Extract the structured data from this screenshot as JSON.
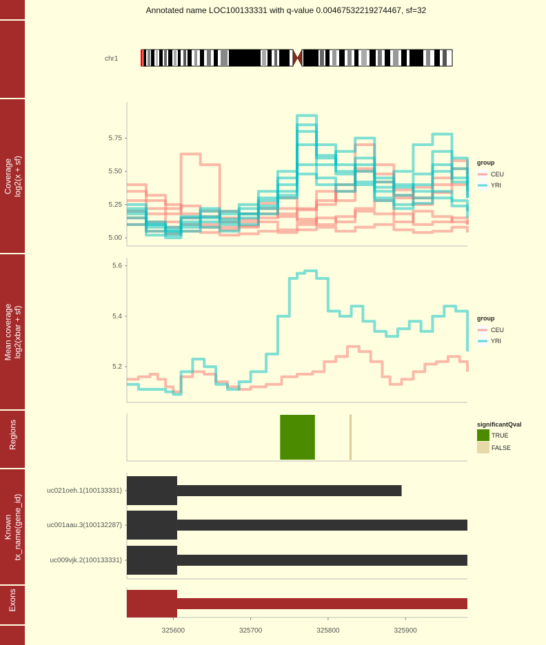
{
  "title": "Annotated name LOC100133331 with q-value 0.00467532219274467, sf=32",
  "colors": {
    "background": "#ffffe0",
    "strip": "#a52a2a",
    "CEU": "#f8766d",
    "YRI": "#00bfc4",
    "TRUE": "#4b8b00",
    "FALSE": "#e8d9a8",
    "transcript": "#333333",
    "exon": "#a52a2a"
  },
  "strips": [
    {
      "label": ""
    },
    {
      "label": ""
    },
    {
      "label": "Coverage\nlog2(x + sf)"
    },
    {
      "label": "Mean coverage\nlog2(xbar + sf)"
    },
    {
      "label": "Regions"
    },
    {
      "label": "Known\ntx_name(gene_id)"
    },
    {
      "label": "Exons"
    },
    {
      "label": ""
    }
  ],
  "ideogram": {
    "chromosome": "chr1"
  },
  "chart_data": [
    {
      "type": "line",
      "panel": "coverage",
      "ylabel": "Coverage log2(x + sf)",
      "x_range": [
        325540,
        325980
      ],
      "ylim": [
        4.98,
        5.98
      ],
      "y_ticks": [
        5.0,
        5.25,
        5.5,
        5.75
      ],
      "y_tick_labels": [
        "5.00",
        "5.25",
        "5.50",
        "5.75"
      ],
      "legend": {
        "title": "group",
        "entries": [
          "CEU",
          "YRI"
        ]
      },
      "series": [
        {
          "group": "CEU",
          "x": [
            325540,
            325565,
            325590,
            325610,
            325635,
            325660,
            325685,
            325710,
            325735,
            325760,
            325785,
            325810,
            325835,
            325860,
            325885,
            325910,
            325935,
            325960,
            325980
          ],
          "y": [
            5.35,
            5.28,
            5.22,
            5.63,
            5.55,
            5.12,
            5.09,
            5.15,
            5.18,
            5.21,
            5.25,
            5.35,
            5.7,
            5.55,
            5.3,
            5.38,
            5.45,
            5.52,
            5.48
          ]
        },
        {
          "group": "CEU",
          "x": [
            325540,
            325565,
            325590,
            325610,
            325635,
            325660,
            325685,
            325710,
            325735,
            325760,
            325785,
            325810,
            325835,
            325860,
            325885,
            325910,
            325935,
            325960,
            325980
          ],
          "y": [
            5.2,
            5.18,
            5.12,
            5.1,
            5.08,
            5.06,
            5.08,
            5.12,
            5.06,
            5.1,
            5.15,
            5.12,
            5.22,
            5.28,
            5.18,
            5.1,
            5.12,
            5.15,
            5.1
          ]
        },
        {
          "group": "CEU",
          "x": [
            325540,
            325565,
            325590,
            325610,
            325635,
            325660,
            325685,
            325710,
            325735,
            325760,
            325785,
            325810,
            325835,
            325860,
            325885,
            325910,
            325935,
            325960,
            325980
          ],
          "y": [
            5.1,
            5.05,
            5.03,
            5.05,
            5.04,
            5.02,
            5.03,
            5.05,
            5.04,
            5.06,
            5.08,
            5.05,
            5.08,
            5.1,
            5.06,
            5.04,
            5.05,
            5.08,
            5.04
          ]
        },
        {
          "group": "CEU",
          "x": [
            325540,
            325565,
            325590,
            325610,
            325635,
            325660,
            325685,
            325710,
            325735,
            325760,
            325785,
            325810,
            325835,
            325860,
            325885,
            325910,
            325935,
            325960,
            325980
          ],
          "y": [
            5.4,
            5.32,
            5.25,
            5.18,
            5.16,
            5.2,
            5.14,
            5.22,
            5.16,
            5.12,
            5.35,
            5.28,
            5.5,
            5.42,
            5.32,
            5.25,
            5.4,
            5.58,
            5.45
          ]
        },
        {
          "group": "CEU",
          "x": [
            325540,
            325565,
            325590,
            325610,
            325635,
            325660,
            325685,
            325710,
            325735,
            325760,
            325785,
            325810,
            325835,
            325860,
            325885,
            325910,
            325935,
            325960,
            325980
          ],
          "y": [
            5.15,
            5.12,
            5.08,
            5.15,
            5.1,
            5.08,
            5.12,
            5.18,
            5.22,
            5.14,
            5.1,
            5.16,
            5.2,
            5.18,
            5.12,
            5.2,
            5.16,
            5.12,
            5.1
          ]
        },
        {
          "group": "CEU",
          "x": [
            325540,
            325565,
            325590,
            325610,
            325635,
            325660,
            325685,
            325710,
            325735,
            325760,
            325785,
            325810,
            325835,
            325860,
            325885,
            325910,
            325935,
            325960,
            325980
          ],
          "y": [
            5.28,
            5.22,
            5.18,
            5.24,
            5.2,
            5.15,
            5.18,
            5.26,
            5.3,
            5.22,
            5.28,
            5.4,
            5.52,
            5.48,
            5.36,
            5.3,
            5.34,
            5.4,
            5.42
          ]
        },
        {
          "group": "YRI",
          "x": [
            325540,
            325565,
            325590,
            325610,
            325635,
            325660,
            325685,
            325710,
            325735,
            325760,
            325785,
            325810,
            325835,
            325860,
            325885,
            325910,
            325935,
            325960,
            325980
          ],
          "y": [
            5.25,
            5.1,
            5.05,
            5.15,
            5.2,
            5.12,
            5.18,
            5.3,
            5.45,
            5.92,
            5.7,
            5.55,
            5.4,
            5.35,
            5.5,
            5.7,
            5.78,
            5.6,
            5.4
          ]
        },
        {
          "group": "YRI",
          "x": [
            325540,
            325565,
            325590,
            325610,
            325635,
            325660,
            325685,
            325710,
            325735,
            325760,
            325785,
            325810,
            325835,
            325860,
            325885,
            325910,
            325935,
            325960,
            325980
          ],
          "y": [
            5.15,
            5.05,
            5.02,
            5.08,
            5.12,
            5.1,
            5.15,
            5.22,
            5.35,
            5.8,
            5.55,
            5.65,
            5.75,
            5.45,
            5.4,
            5.35,
            5.5,
            5.42,
            5.3
          ]
        },
        {
          "group": "YRI",
          "x": [
            325540,
            325565,
            325590,
            325610,
            325635,
            325660,
            325685,
            325710,
            325735,
            325760,
            325785,
            325810,
            325835,
            325860,
            325885,
            325910,
            325935,
            325960,
            325980
          ],
          "y": [
            5.1,
            5.02,
            5.0,
            5.05,
            5.08,
            5.05,
            5.1,
            5.18,
            5.3,
            5.55,
            5.45,
            5.4,
            5.5,
            5.3,
            5.25,
            5.3,
            5.35,
            5.28,
            5.2
          ]
        },
        {
          "group": "YRI",
          "x": [
            325540,
            325565,
            325590,
            325610,
            325635,
            325660,
            325685,
            325710,
            325735,
            325760,
            325785,
            325810,
            325835,
            325860,
            325885,
            325910,
            325935,
            325960,
            325980
          ],
          "y": [
            5.2,
            5.08,
            5.04,
            5.1,
            5.15,
            5.18,
            5.22,
            5.28,
            5.4,
            5.7,
            5.6,
            5.5,
            5.6,
            5.38,
            5.32,
            5.4,
            5.55,
            5.45,
            5.35
          ]
        },
        {
          "group": "YRI",
          "x": [
            325540,
            325565,
            325590,
            325610,
            325635,
            325660,
            325685,
            325710,
            325735,
            325760,
            325785,
            325810,
            325835,
            325860,
            325885,
            325910,
            325935,
            325960,
            325980
          ],
          "y": [
            5.18,
            5.1,
            5.06,
            5.12,
            5.16,
            5.14,
            5.18,
            5.24,
            5.32,
            5.48,
            5.4,
            5.35,
            5.42,
            5.28,
            5.22,
            5.26,
            5.3,
            5.24,
            5.15
          ]
        },
        {
          "group": "YRI",
          "x": [
            325540,
            325565,
            325590,
            325610,
            325635,
            325660,
            325685,
            325710,
            325735,
            325760,
            325785,
            325810,
            325835,
            325860,
            325885,
            325910,
            325935,
            325960,
            325980
          ],
          "y": [
            5.22,
            5.12,
            5.08,
            5.16,
            5.22,
            5.2,
            5.25,
            5.35,
            5.5,
            5.85,
            5.62,
            5.48,
            5.55,
            5.42,
            5.38,
            5.48,
            5.65,
            5.52,
            5.3
          ]
        }
      ]
    },
    {
      "type": "line",
      "panel": "mean coverage",
      "ylabel": "Mean coverage log2(xbar + sf)",
      "x_range": [
        325540,
        325980
      ],
      "ylim": [
        5.08,
        5.61
      ],
      "y_ticks": [
        5.2,
        5.4,
        5.6
      ],
      "y_tick_labels": [
        "5.2",
        "5.4",
        "5.6"
      ],
      "legend": {
        "title": "group",
        "entries": [
          "CEU",
          "YRI"
        ]
      },
      "series": [
        {
          "name": "CEU",
          "x": [
            325540,
            325555,
            325570,
            325580,
            325590,
            325600,
            325610,
            325625,
            325640,
            325655,
            325670,
            325685,
            325700,
            325720,
            325740,
            325760,
            325780,
            325795,
            325810,
            325825,
            325840,
            325855,
            325870,
            325880,
            325895,
            325910,
            325925,
            325940,
            325955,
            325970,
            325980
          ],
          "y": [
            5.15,
            5.16,
            5.17,
            5.15,
            5.12,
            5.1,
            5.16,
            5.18,
            5.17,
            5.14,
            5.12,
            5.11,
            5.12,
            5.13,
            5.16,
            5.17,
            5.18,
            5.22,
            5.24,
            5.28,
            5.26,
            5.22,
            5.16,
            5.13,
            5.15,
            5.18,
            5.21,
            5.22,
            5.24,
            5.22,
            5.18
          ]
        },
        {
          "name": "YRI",
          "x": [
            325540,
            325555,
            325570,
            325580,
            325590,
            325600,
            325610,
            325625,
            325640,
            325655,
            325670,
            325685,
            325700,
            325720,
            325735,
            325750,
            325760,
            325770,
            325785,
            325800,
            325815,
            325830,
            325845,
            325860,
            325875,
            325890,
            325905,
            325920,
            325935,
            325950,
            325965,
            325980
          ],
          "y": [
            5.13,
            5.11,
            5.11,
            5.11,
            5.1,
            5.09,
            5.18,
            5.23,
            5.2,
            5.13,
            5.11,
            5.14,
            5.18,
            5.25,
            5.4,
            5.55,
            5.57,
            5.58,
            5.55,
            5.42,
            5.4,
            5.44,
            5.38,
            5.34,
            5.32,
            5.35,
            5.38,
            5.34,
            5.4,
            5.44,
            5.42,
            5.26
          ]
        }
      ]
    },
    {
      "type": "bar",
      "panel": "regions",
      "ylabel": "Regions",
      "x_range": [
        325540,
        325980
      ],
      "legend": {
        "title": "significantQval",
        "entries": [
          "TRUE",
          "FALSE"
        ]
      },
      "regions": [
        {
          "start": 325738,
          "end": 325783,
          "significant": "TRUE"
        },
        {
          "start": 325828,
          "end": 325830,
          "significant": "FALSE"
        }
      ]
    },
    {
      "type": "bar",
      "panel": "known transcripts",
      "ylabel": "Known tx_name(gene_id)",
      "x_range": [
        325540,
        325980
      ],
      "transcripts": [
        {
          "name": "uc021oeh.1(100133331)",
          "exon": [
            325540,
            325605
          ],
          "line": [
            325605,
            325895
          ]
        },
        {
          "name": "uc001aau.3(100132287)",
          "exon": [
            325540,
            325605
          ],
          "line": [
            325605,
            325980
          ]
        },
        {
          "name": "uc009vjk.2(100133331)",
          "exon": [
            325540,
            325605
          ],
          "line": [
            325605,
            325980
          ]
        }
      ]
    },
    {
      "type": "bar",
      "panel": "exons",
      "ylabel": "Exons",
      "x_range": [
        325540,
        325980
      ],
      "exons": [
        {
          "start": 325540,
          "end": 325605,
          "kind": "exon"
        },
        {
          "start": 325605,
          "end": 325980,
          "kind": "intron"
        }
      ],
      "x_ticks": [
        325600,
        325700,
        325800,
        325900
      ],
      "x_tick_labels": [
        "325600",
        "325700",
        "325800",
        "325900"
      ]
    }
  ]
}
